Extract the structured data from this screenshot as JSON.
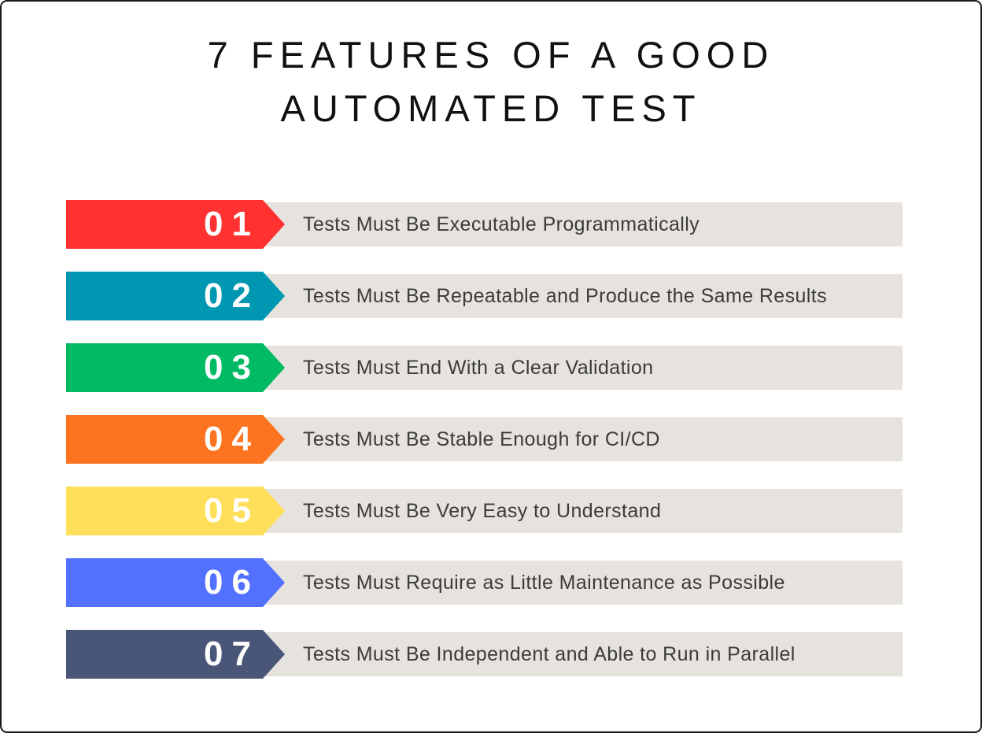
{
  "title": {
    "line1": "7 FEATURES OF A GOOD",
    "line2": "AUTOMATED TEST"
  },
  "items": [
    {
      "number": "01",
      "label": "Tests Must Be Executable Programmatically",
      "color": "#FF3131"
    },
    {
      "number": "02",
      "label": "Tests Must Be Repeatable and Produce the Same Results",
      "color": "#0097B2"
    },
    {
      "number": "03",
      "label": "Tests Must End With a Clear Validation",
      "color": "#00BB63"
    },
    {
      "number": "04",
      "label": "Tests Must Be Stable Enough for CI/CD",
      "color": "#FC7420"
    },
    {
      "number": "05",
      "label": "Tests Must Be Very Easy to Understand",
      "color": "#FFDE59"
    },
    {
      "number": "06",
      "label": "Tests Must Require as Little Maintenance as Possible",
      "color": "#5271FF"
    },
    {
      "number": "07",
      "label": "Tests Must Be Independent and Able to Run in Parallel",
      "color": "#4A5677"
    }
  ],
  "colors": {
    "background": "#FFFFFF",
    "frame_border": "#1A1A1A",
    "bar_background": "#E6E2DD",
    "title_text": "#111111",
    "item_text": "#3B3B3B",
    "number_text": "#FFFFFF"
  }
}
